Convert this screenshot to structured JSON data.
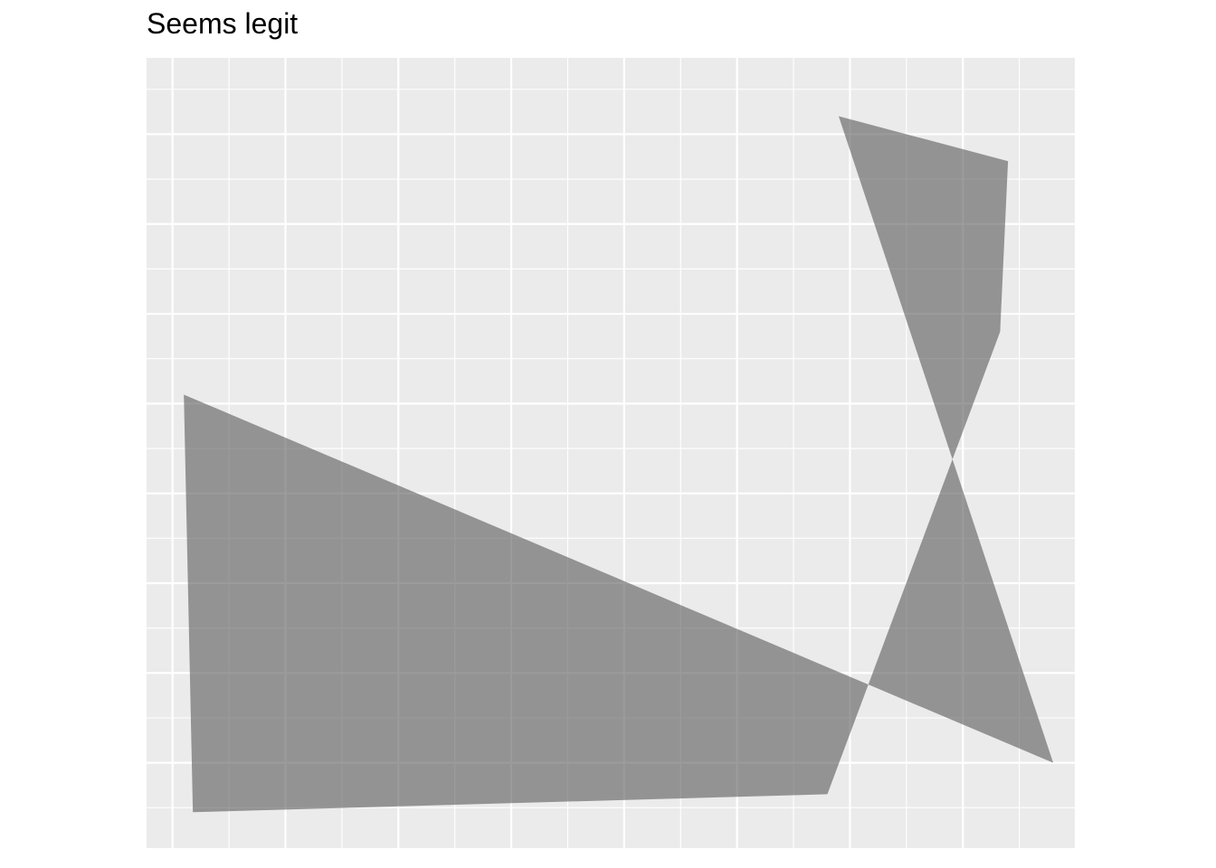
{
  "chart_data": {
    "type": "area",
    "title": "Seems legit",
    "xlabel": "",
    "ylabel": "",
    "xlim": [
      0.77,
      9.0
    ],
    "ylim": [
      0.05,
      8.85
    ],
    "grid": true,
    "legend": "none",
    "panel_background": "#EBEBEB",
    "gridline_color": "#FFFFFF",
    "fill_color": "#595959",
    "fill_opacity": 0.6,
    "polygon": [
      {
        "x": 1.1,
        "y": 5.1
      },
      {
        "x": 8.8,
        "y": 1.0
      },
      {
        "x": 6.9,
        "y": 8.2
      },
      {
        "x": 8.4,
        "y": 7.7
      },
      {
        "x": 8.33,
        "y": 5.8
      },
      {
        "x": 6.8,
        "y": 0.65
      },
      {
        "x": 1.18,
        "y": 0.45
      }
    ]
  }
}
